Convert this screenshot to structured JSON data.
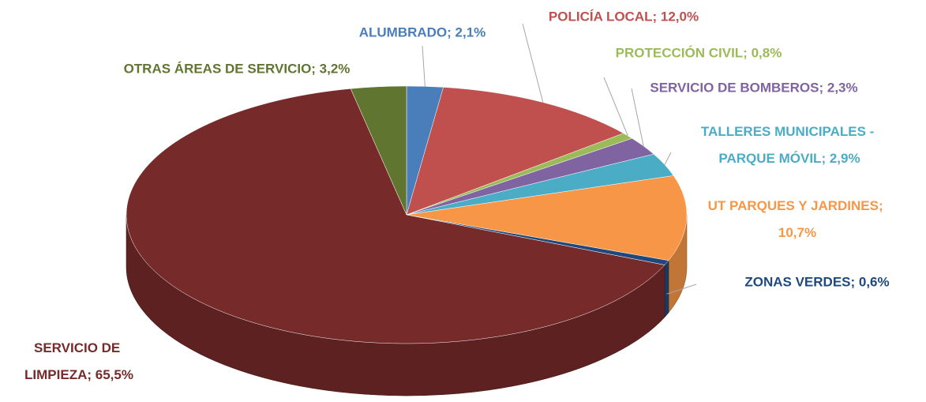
{
  "chart_data": {
    "type": "pie",
    "categories": [
      "ALUMBRADO",
      "POLICÍA LOCAL",
      "PROTECCIÓN CIVIL",
      "SERVICIO DE BOMBEROS",
      "TALLERES MUNICIPALES - PARQUE MÓVIL",
      "UT PARQUES Y JARDINES",
      "ZONAS VERDES",
      "SERVICIO DE LIMPIEZA",
      "OTRAS ÁREAS DE SERVICIO"
    ],
    "values": [
      2.1,
      12.0,
      0.8,
      2.3,
      2.9,
      10.7,
      0.6,
      65.5,
      3.2
    ],
    "value_labels": [
      "ALUMBRADO; 2,1%",
      "POLICÍA LOCAL; 12,0%",
      "PROTECCIÓN CIVIL; 0,8%",
      "SERVICIO DE BOMBEROS; 2,3%",
      "TALLERES MUNICIPALES - PARQUE MÓVIL; 2,9%",
      "UT PARQUES Y JARDINES; 10,7%",
      "ZONAS VERDES; 0,6%",
      "SERVICIO DE LIMPIEZA; 65,5%",
      "OTRAS ÁREAS DE SERVICIO; 3,2%"
    ],
    "colors": [
      "#4a7ebb",
      "#c0504d",
      "#9bbb59",
      "#8064a2",
      "#4bacc6",
      "#f79646",
      "#1f497d",
      "#772a2a",
      "#5f7530"
    ]
  }
}
